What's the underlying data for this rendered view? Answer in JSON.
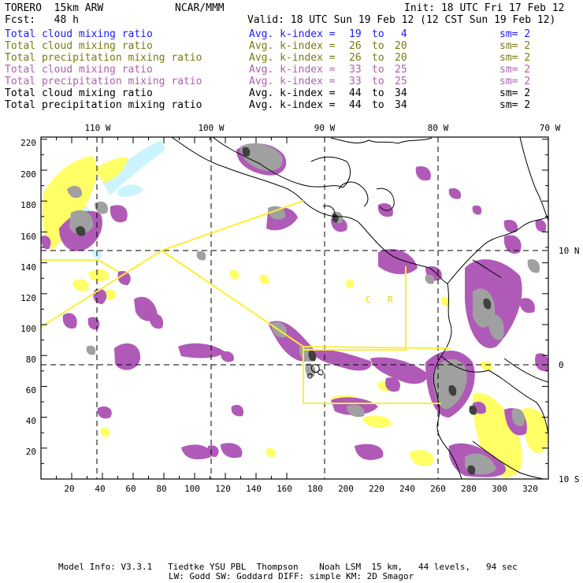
{
  "header": {
    "model": "TORERO  15km ARW",
    "org": "NCAR/MMM",
    "init": "Init: 18 UTC Fri 17 Feb 12",
    "fcst": "Fcst:   48 h",
    "valid": "Valid: 18 UTC Sun 19 Feb 12 (12 CST Sun 19 Feb 12)"
  },
  "legend": [
    {
      "field": "Total cloud mixing ratio",
      "avg": "Avg. k-index =",
      "from": "19",
      "to_word": "to",
      "to": " 4",
      "sm": "sm= 2",
      "color": "#1a1aff"
    },
    {
      "field": "Total cloud mixing ratio",
      "avg": "Avg. k-index =",
      "from": "26",
      "to_word": "to",
      "to": "20",
      "sm": "sm= 2",
      "color": "#7a7a10"
    },
    {
      "field": "Total precipitation mixing ratio",
      "avg": "Avg. k-index =",
      "from": "26",
      "to_word": "to",
      "to": "20",
      "sm": "sm= 2",
      "color": "#7a7a10"
    },
    {
      "field": "Total cloud mixing ratio",
      "avg": "Avg. k-index =",
      "from": "33",
      "to_word": "to",
      "to": "25",
      "sm": "sm= 2",
      "color": "#b060b0"
    },
    {
      "field": "Total precipitation mixing ratio",
      "avg": "Avg. k-index =",
      "from": "33",
      "to_word": "to",
      "to": "25",
      "sm": "sm= 2",
      "color": "#b060b0"
    },
    {
      "field": "Total cloud mixing ratio",
      "avg": "Avg. k-index =",
      "from": "44",
      "to_word": "to",
      "to": "34",
      "sm": "sm= 2",
      "color": "#000000"
    },
    {
      "field": "Total precipitation mixing ratio",
      "avg": "Avg. k-index =",
      "from": "44",
      "to_word": "to",
      "to": "34",
      "sm": "sm= 2",
      "color": "#000000"
    }
  ],
  "map": {
    "lon_labels": [
      "110 W",
      "100 W",
      "90 W",
      "80 W",
      "70 W"
    ],
    "lat_labels": [
      "10 N",
      "0",
      "10 S"
    ],
    "y_ticks": [
      "220",
      "200",
      "180",
      "160",
      "140",
      "120",
      "100",
      "80",
      "60",
      "40",
      "20"
    ],
    "x_ticks": [
      "20",
      "40",
      "60",
      "80",
      "100",
      "120",
      "140",
      "160",
      "180",
      "200",
      "220",
      "240",
      "260",
      "280",
      "300",
      "320"
    ],
    "domain_labels": [
      "C",
      "R"
    ],
    "colors": {
      "yellow": "#ffff66",
      "purple": "#b05ab8",
      "gray": "#a0a0a0",
      "dark": "#404040",
      "cyan": "#ccf4ff",
      "domain": "#ffee33"
    }
  },
  "footer": {
    "line1": "Model Info: V3.3.1   Tiedtke YSU PBL  Thompson    Noah LSM  15 km,   44 levels,   94 sec",
    "line2": "LW: Godd SW: Goddard DIFF: simple KM: 2D Smagor"
  }
}
